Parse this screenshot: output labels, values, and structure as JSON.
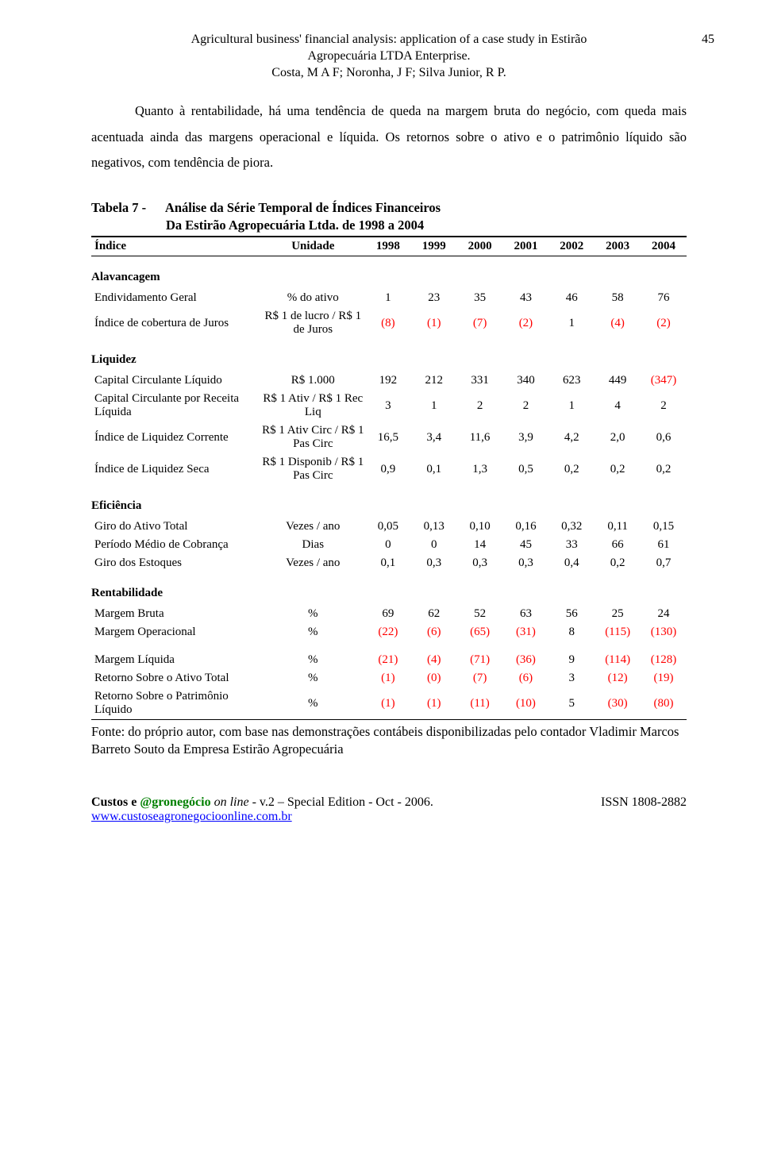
{
  "page_number": "45",
  "header": {
    "title_line1": "Agricultural business' financial analysis: application of a case study in Estirão",
    "title_line2": "Agropecuária LTDA Enterprise.",
    "authors": "Costa, M A F; Noronha, J F; Silva Junior, R P."
  },
  "paragraph": "Quanto à rentabilidade, há uma tendência de queda na margem bruta do negócio, com queda mais acentuada ainda das margens operacional e líquida. Os retornos sobre o ativo e o patrimônio líquido são negativos, com tendência de piora.",
  "table_title": {
    "prefix": "Tabela 7 -",
    "line1": "Análise da Série Temporal de Índices Financeiros",
    "line2": "Da Estirão Agropecuária Ltda. de 1998 a 2004"
  },
  "columns": [
    "Índice",
    "Unidade",
    "1998",
    "1999",
    "2000",
    "2001",
    "2002",
    "2003",
    "2004"
  ],
  "neg_color": "#ff0000",
  "sections": [
    {
      "name": "Alavancagem",
      "rows": [
        {
          "label": "Endividamento Geral",
          "unit": "% do ativo",
          "vals": [
            "1",
            "23",
            "35",
            "43",
            "46",
            "58",
            "76"
          ],
          "neg": [
            false,
            false,
            false,
            false,
            false,
            false,
            false
          ]
        },
        {
          "label": "Índice de cobertura de Juros",
          "unit": "R$ 1 de lucro / R$ 1 de Juros",
          "vals": [
            "(8)",
            "(1)",
            "(7)",
            "(2)",
            "1",
            "(4)",
            "(2)"
          ],
          "neg": [
            true,
            true,
            true,
            true,
            false,
            true,
            true
          ]
        }
      ]
    },
    {
      "name": "Liquidez",
      "rows": [
        {
          "label": "Capital Circulante Líquido",
          "unit": "R$ 1.000",
          "vals": [
            "192",
            "212",
            "331",
            "340",
            "623",
            "449",
            "(347)"
          ],
          "neg": [
            false,
            false,
            false,
            false,
            false,
            false,
            true
          ]
        },
        {
          "label": "Capital Circulante por Receita Líquida",
          "unit": "R$ 1 Ativ / R$ 1 Rec Liq",
          "vals": [
            "3",
            "1",
            "2",
            "2",
            "1",
            "4",
            "2"
          ],
          "neg": [
            false,
            false,
            false,
            false,
            false,
            false,
            false
          ]
        },
        {
          "label": "Índice de Liquidez Corrente",
          "unit": "R$ 1 Ativ Circ / R$ 1 Pas Circ",
          "vals": [
            "16,5",
            "3,4",
            "11,6",
            "3,9",
            "4,2",
            "2,0",
            "0,6"
          ],
          "neg": [
            false,
            false,
            false,
            false,
            false,
            false,
            false
          ]
        },
        {
          "label": "Índice de Liquidez Seca",
          "unit": "R$ 1 Disponib / R$ 1 Pas Circ",
          "vals": [
            "0,9",
            "0,1",
            "1,3",
            "0,5",
            "0,2",
            "0,2",
            "0,2"
          ],
          "neg": [
            false,
            false,
            false,
            false,
            false,
            false,
            false
          ]
        }
      ]
    },
    {
      "name": "Eficiência",
      "rows": [
        {
          "label": "Giro do Ativo Total",
          "unit": "Vezes / ano",
          "vals": [
            "0,05",
            "0,13",
            "0,10",
            "0,16",
            "0,32",
            "0,11",
            "0,15"
          ],
          "neg": [
            false,
            false,
            false,
            false,
            false,
            false,
            false
          ]
        },
        {
          "label": "Período Médio de Cobrança",
          "unit": "Dias",
          "vals": [
            "0",
            "0",
            "14",
            "45",
            "33",
            "66",
            "61"
          ],
          "neg": [
            false,
            false,
            false,
            false,
            false,
            false,
            false
          ]
        },
        {
          "label": "Giro dos Estoques",
          "unit": "Vezes / ano",
          "vals": [
            "0,1",
            "0,3",
            "0,3",
            "0,3",
            "0,4",
            "0,2",
            "0,7"
          ],
          "neg": [
            false,
            false,
            false,
            false,
            false,
            false,
            false
          ]
        }
      ]
    },
    {
      "name": "Rentabilidade",
      "rows": [
        {
          "label": "Margem Bruta",
          "unit": "%",
          "vals": [
            "69",
            "62",
            "52",
            "63",
            "56",
            "25",
            "24"
          ],
          "neg": [
            false,
            false,
            false,
            false,
            false,
            false,
            false
          ]
        },
        {
          "label": "Margem Operacional",
          "unit": "%",
          "vals": [
            "(22)",
            "(6)",
            "(65)",
            "(31)",
            "8",
            "(115)",
            "(130)"
          ],
          "neg": [
            true,
            true,
            true,
            true,
            false,
            true,
            true
          ],
          "pad_after": true
        },
        {
          "label": "Margem Líquida",
          "unit": "%",
          "vals": [
            "(21)",
            "(4)",
            "(71)",
            "(36)",
            "9",
            "(114)",
            "(128)"
          ],
          "neg": [
            true,
            true,
            true,
            true,
            false,
            true,
            true
          ]
        },
        {
          "label": "Retorno Sobre o Ativo Total",
          "unit": "%",
          "vals": [
            "(1)",
            "(0)",
            "(7)",
            "(6)",
            "3",
            "(12)",
            "(19)"
          ],
          "neg": [
            true,
            true,
            true,
            true,
            false,
            true,
            true
          ]
        },
        {
          "label": "Retorno Sobre o Patrimônio Líquido",
          "unit": "%",
          "vals": [
            "(1)",
            "(1)",
            "(11)",
            "(10)",
            "5",
            "(30)",
            "(80)"
          ],
          "neg": [
            true,
            true,
            true,
            true,
            false,
            true,
            true
          ]
        }
      ]
    }
  ],
  "source": "Fonte: do próprio autor, com base nas demonstrações contábeis disponibilizadas pelo contador Vladimir Marcos Barreto Souto da Empresa Estirão Agropecuária",
  "footer": {
    "journal_custos": "Custos e ",
    "journal_agro": "@gronegócio",
    "online": " on line",
    "vol": " - v.2 – Special Edition - Oct - 2006.",
    "url": "www.custoseagronegocioonline.com.br",
    "issn": "ISSN 1808-2882"
  }
}
